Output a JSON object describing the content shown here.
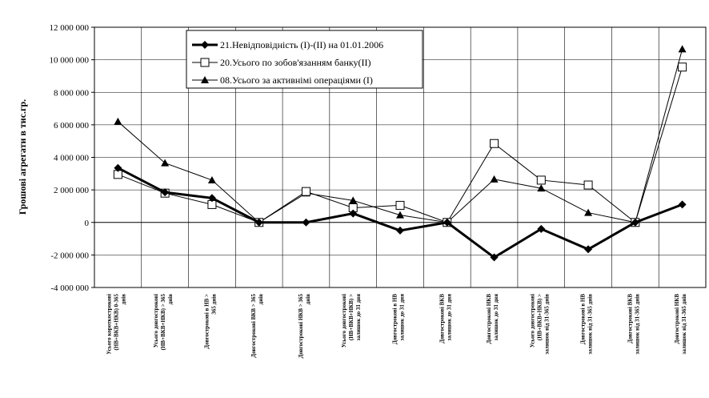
{
  "chart_data": {
    "type": "line",
    "title": "",
    "xlabel": "",
    "ylabel": "Грошові агрегати в тис.гр.",
    "ylim": [
      -4000000,
      12000000
    ],
    "yticks": [
      12000000,
      10000000,
      8000000,
      6000000,
      4000000,
      2000000,
      0,
      -2000000,
      -4000000
    ],
    "ytick_labels": [
      "12 000 000",
      "10 000 000",
      "8 000 000",
      "6 000 000",
      "4 000 000",
      "2 000 000",
      "0",
      "-2 000 000",
      "-4 000 000"
    ],
    "grid": true,
    "legend_position": "top-left",
    "categories": [
      [
        "Усього короткострокові",
        "(НВ+ВКВ+НКВ) 0-365",
        "днів"
      ],
      [
        "Усього довгострокові",
        "(НВ+ВКВ+НКВ) > 365",
        "днів"
      ],
      [
        "Довгострокові в НВ >",
        "365 днів"
      ],
      [
        "Довгострокові ВКВ > 365",
        "днів"
      ],
      [
        "Довгострокові НКВ > 365",
        "днів"
      ],
      [
        "Усього довгострокові",
        "(НВ+ВКВ+НКВ) >",
        "залишок до 31 дня"
      ],
      [
        "Довгострокові в НВ",
        "залишок до 31 дня"
      ],
      [
        "Довгострокові ВКВ",
        "залишок до 31 дня"
      ],
      [
        "Довгострокові НКВ",
        "залишок до 31 дня"
      ],
      [
        "Усього довгострокові",
        "(НВ+ВКВ+НКВ) >",
        "залишок від 31-365 днів"
      ],
      [
        "Довгострокові в НВ",
        "залишок від 31-365 днів"
      ],
      [
        "Довгострокові ВКВ",
        "залишок від 31-365 днів"
      ],
      [
        "Довгострокові НКВ",
        "залишок від 31-365 днів"
      ]
    ],
    "series": [
      {
        "name": "21.Невідповідність (I)-(II) на 01.01.2006",
        "marker": "diamond",
        "color": "#000000",
        "values": [
          3350000,
          1850000,
          1500000,
          0,
          0,
          550000,
          -500000,
          0,
          -2150000,
          -400000,
          -1650000,
          0,
          1100000
        ]
      },
      {
        "name": "20.Усього по зобов'язанням банку(II)",
        "marker": "square-open",
        "color": "#000000",
        "values": [
          2950000,
          1800000,
          1100000,
          0,
          1900000,
          900000,
          1050000,
          0,
          4850000,
          2600000,
          2300000,
          0,
          9550000
        ]
      },
      {
        "name": "08.Усього за активнімі операціями (I)",
        "marker": "triangle",
        "color": "#000000",
        "values": [
          6200000,
          3650000,
          2600000,
          0,
          1800000,
          1350000,
          450000,
          0,
          2650000,
          2100000,
          600000,
          0,
          10650000
        ]
      }
    ]
  }
}
